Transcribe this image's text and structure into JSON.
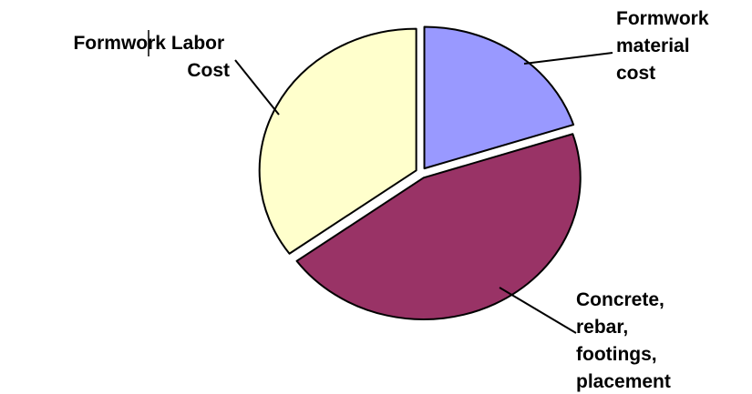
{
  "chart_data": {
    "type": "pie",
    "exploded": true,
    "title": "",
    "slices": [
      {
        "label_lines": [
          "Formwork",
          "material",
          "cost"
        ],
        "value": 20,
        "color": "#9999ff"
      },
      {
        "label_lines": [
          "Concrete,",
          "rebar,",
          "footings,",
          "placement"
        ],
        "value": 45,
        "color": "#993366"
      },
      {
        "label_lines": [
          "Formwork Labor",
          "Cost"
        ],
        "value": 35,
        "color": "#ffffcc"
      }
    ]
  }
}
